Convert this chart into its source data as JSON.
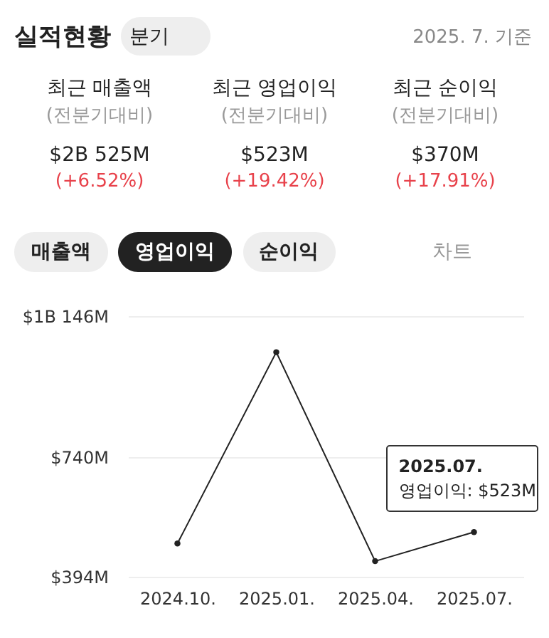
{
  "chart_data": {
    "type": "line",
    "title": "실적현황",
    "annotations": [
      "분기",
      "2025. 7. 기준",
      "최근 매출액",
      "(전분기대비)",
      "$2B 525M",
      "(+6.52%)",
      "최근 영업이익",
      "(전분기대비)",
      "$523M",
      "(+19.42%)",
      "최근 순이익",
      "(전분기대비)",
      "$370M",
      "(+17.91%)",
      "매출액",
      "영업이익",
      "순이익",
      "차트",
      {
        "text": "2025.07.\n영업이익: $523M",
        "x": "2025.07.",
        "y": 523
      }
    ],
    "categories": [
      "2024.10.",
      "2025.01.",
      "2025.04.",
      "2025.07."
    ],
    "series": [
      {
        "color": "#222222",
        "values": [
          490,
          1042,
          439,
          523
        ]
      }
    ],
    "ylim": [
      394,
      1146
    ],
    "yticks": [
      {
        "value": 394,
        "label": "$394M"
      },
      {
        "value": 740,
        "label": "$740M"
      },
      {
        "value": 1146,
        "label": "$1B 146M"
      }
    ],
    "grid": "y",
    "marker": "circle",
    "line_style": "solid"
  }
}
